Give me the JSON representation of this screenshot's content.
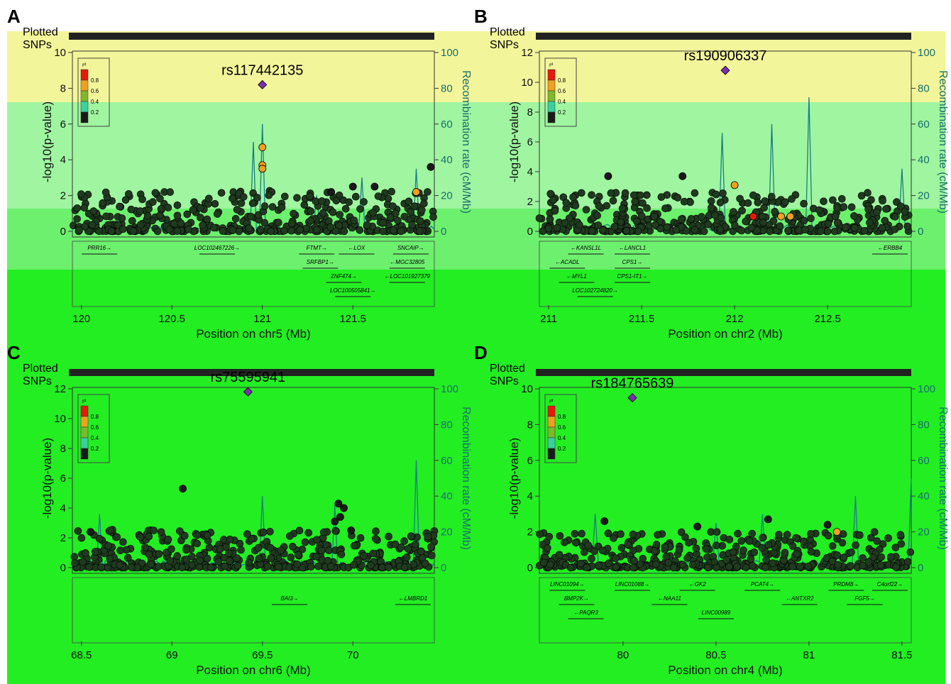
{
  "colors": {
    "r2_bins": [
      "#1a1a1a",
      "#3ad0a0",
      "#7fb82a",
      "#f0a020",
      "#e8180c"
    ],
    "recombination": "#1a7f80",
    "bg_top": "#f3f59a",
    "bg_mid": "#9ff5a0",
    "bg_low": "#22ee22"
  },
  "common": {
    "plotted_snps_label": "Plotted\nSNPs",
    "ylabel": "-log10(p-value)",
    "ylabel_rec": "Recombination rate (cM/Mb)",
    "legend_title": "r²",
    "legend_levels": [
      "0.8",
      "0.6",
      "0.4",
      "0.2"
    ]
  },
  "panels": [
    {
      "id": "A",
      "lead_snp": "rs117442135",
      "xlabel": "Position on chr5 (Mb)",
      "xlim": [
        119.95,
        121.95
      ],
      "xticks": [
        "120",
        "120.5",
        "121",
        "121.5"
      ],
      "ylim": [
        0,
        10
      ],
      "yticks": [
        "0",
        "2",
        "4",
        "6",
        "8",
        "10"
      ],
      "recticks": [
        "0",
        "20",
        "40",
        "60",
        "80",
        "100"
      ],
      "genes": [
        {
          "name": "PRR16→",
          "x": 120.1,
          "row": 0
        },
        {
          "name": "LOC102467226→",
          "x": 120.75,
          "row": 0
        },
        {
          "name": "FTMT→",
          "x": 121.3,
          "row": 0
        },
        {
          "name": "←LOX",
          "x": 121.52,
          "row": 0
        },
        {
          "name": "SNCAIP→",
          "x": 121.82,
          "row": 0
        },
        {
          "name": "SRFBP1→",
          "x": 121.32,
          "row": 1
        },
        {
          "name": "←MGC32805",
          "x": 121.8,
          "row": 1
        },
        {
          "name": "ZNF474→",
          "x": 121.45,
          "row": 2
        },
        {
          "name": "←LOC101927379",
          "x": 121.8,
          "row": 2
        },
        {
          "name": "LOC100505841→",
          "x": 121.5,
          "row": 3
        }
      ],
      "chart_data": {
        "type": "scatter",
        "lead": {
          "x": 121.0,
          "y": 8.2,
          "label": "rs117442135"
        },
        "points": [
          {
            "x": 121.0,
            "y": 4.7,
            "r2": 0.6
          },
          {
            "x": 121.0,
            "y": 3.7,
            "r2": 0.6
          },
          {
            "x": 121.0,
            "y": 3.5,
            "r2": 0.6
          },
          {
            "x": 121.93,
            "y": 3.6,
            "r2": 0.1
          },
          {
            "x": 121.5,
            "y": 2.5,
            "r2": 0.1
          },
          {
            "x": 121.62,
            "y": 2.5,
            "r2": 0.1
          },
          {
            "x": 121.85,
            "y": 2.2,
            "r2": 0.6
          },
          {
            "x": 121.38,
            "y": 2.2,
            "r2": 0.1
          }
        ],
        "background_max_y": 2.3,
        "rec_peaks": [
          [
            120.95,
            50
          ],
          [
            121.0,
            60
          ],
          [
            121.3,
            20
          ],
          [
            121.55,
            30
          ],
          [
            121.85,
            35
          ]
        ]
      }
    },
    {
      "id": "B",
      "lead_snp": "rs190906337",
      "xlabel": "Position on chr2 (Mb)",
      "xlim": [
        210.95,
        212.95
      ],
      "xticks": [
        "211",
        "211.5",
        "212",
        "212.5"
      ],
      "ylim": [
        0,
        12
      ],
      "yticks": [
        "0",
        "2",
        "4",
        "6",
        "8",
        "10",
        "12"
      ],
      "recticks": [
        "0",
        "20",
        "40",
        "60",
        "80",
        "100"
      ],
      "genes": [
        {
          "name": "←KANSL1L",
          "x": 211.2,
          "row": 0
        },
        {
          "name": "←LANCL1",
          "x": 211.45,
          "row": 0
        },
        {
          "name": "←ERBB4",
          "x": 212.9,
          "row": 0
        },
        {
          "name": "←ACADL",
          "x": 211.1,
          "row": 1
        },
        {
          "name": "CPS1→",
          "x": 211.45,
          "row": 1
        },
        {
          "name": "←MYL1",
          "x": 211.15,
          "row": 2
        },
        {
          "name": "CPS1-IT1→",
          "x": 211.45,
          "row": 2
        },
        {
          "name": "LOC102724820→",
          "x": 211.25,
          "row": 3
        }
      ],
      "chart_data": {
        "type": "scatter",
        "lead": {
          "x": 211.95,
          "y": 10.8,
          "label": "rs190906337"
        },
        "points": [
          {
            "x": 211.72,
            "y": 3.7,
            "r2": 0.1
          },
          {
            "x": 211.32,
            "y": 3.7,
            "r2": 0.1
          },
          {
            "x": 212.0,
            "y": 3.1,
            "r2": 0.6
          },
          {
            "x": 212.1,
            "y": 1.0,
            "r2": 0.95
          },
          {
            "x": 212.25,
            "y": 1.0,
            "r2": 0.6
          },
          {
            "x": 212.3,
            "y": 1.0,
            "r2": 0.6
          }
        ],
        "background_max_y": 2.6,
        "rec_peaks": [
          [
            211.93,
            55
          ],
          [
            212.2,
            60
          ],
          [
            212.4,
            75
          ],
          [
            212.9,
            35
          ]
        ]
      }
    },
    {
      "id": "C",
      "lead_snp": "rs75595941",
      "xlabel": "Position on chr6 (Mb)",
      "xlim": [
        68.45,
        70.45
      ],
      "xticks": [
        "68.5",
        "69",
        "69.5",
        "70"
      ],
      "ylim": [
        0,
        12
      ],
      "yticks": [
        "0",
        "2",
        "4",
        "6",
        "8",
        "10",
        "12"
      ],
      "recticks": [
        "0",
        "20",
        "40",
        "60",
        "80",
        "100"
      ],
      "genes": [
        {
          "name": "BAI3→",
          "x": 69.65,
          "row": 1
        },
        {
          "name": "←LMBRD1",
          "x": 70.4,
          "row": 1
        }
      ],
      "chart_data": {
        "type": "scatter",
        "lead": {
          "x": 69.42,
          "y": 11.8,
          "label": "rs75595941"
        },
        "points": [
          {
            "x": 69.06,
            "y": 5.3,
            "r2": 0.1
          },
          {
            "x": 69.92,
            "y": 4.3,
            "r2": 0.1
          },
          {
            "x": 69.95,
            "y": 4.0,
            "r2": 0.1
          },
          {
            "x": 69.93,
            "y": 3.4,
            "r2": 0.1
          },
          {
            "x": 69.9,
            "y": 3.1,
            "r2": 0.1
          },
          {
            "x": 69.99,
            "y": 2.5,
            "r2": 0.1
          },
          {
            "x": 68.55,
            "y": 2.4,
            "r2": 0.1
          }
        ],
        "background_max_y": 2.6,
        "rec_peaks": [
          [
            68.6,
            30
          ],
          [
            69.5,
            40
          ],
          [
            69.9,
            35
          ],
          [
            70.35,
            60
          ]
        ]
      }
    },
    {
      "id": "D",
      "lead_snp": "rs184765639",
      "xlabel": "Position on chr4 (Mb)",
      "xlim": [
        79.55,
        81.55
      ],
      "xticks": [
        "80",
        "80.5",
        "81",
        "81.5"
      ],
      "ylim": [
        0,
        10
      ],
      "yticks": [
        "0",
        "2",
        "4",
        "6",
        "8",
        "10"
      ],
      "recticks": [
        "0",
        "20",
        "40",
        "60",
        "80",
        "100"
      ],
      "genes": [
        {
          "name": "LINC01094→",
          "x": 79.7,
          "row": 0
        },
        {
          "name": "LINC01088→",
          "x": 80.05,
          "row": 0
        },
        {
          "name": "←GK2",
          "x": 80.4,
          "row": 0
        },
        {
          "name": "PCAT4→",
          "x": 80.75,
          "row": 0
        },
        {
          "name": "PRDM8→",
          "x": 81.2,
          "row": 0
        },
        {
          "name": "C4orf22→",
          "x": 81.5,
          "row": 0
        },
        {
          "name": "BMP2K→",
          "x": 79.75,
          "row": 1
        },
        {
          "name": "←NAA11",
          "x": 80.25,
          "row": 1
        },
        {
          "name": "←ANTXR2",
          "x": 80.95,
          "row": 1
        },
        {
          "name": "FGF5→",
          "x": 81.3,
          "row": 1
        },
        {
          "name": "←PAQR3",
          "x": 79.8,
          "row": 2
        },
        {
          "name": "LINC00989",
          "x": 80.5,
          "row": 2
        }
      ],
      "chart_data": {
        "type": "scatter",
        "lead": {
          "x": 80.05,
          "y": 9.5,
          "label": "rs184765639"
        },
        "points": [
          {
            "x": 79.9,
            "y": 2.6,
            "r2": 0.1
          },
          {
            "x": 80.4,
            "y": 2.3,
            "r2": 0.1
          },
          {
            "x": 80.78,
            "y": 2.7,
            "r2": 0.1
          },
          {
            "x": 81.1,
            "y": 2.4,
            "r2": 0.1
          },
          {
            "x": 81.15,
            "y": 2.0,
            "r2": 0.6
          }
        ],
        "background_max_y": 2.0,
        "rec_peaks": [
          [
            79.85,
            30
          ],
          [
            80.5,
            25
          ],
          [
            80.75,
            30
          ],
          [
            81.25,
            40
          ],
          [
            81.55,
            50
          ]
        ]
      }
    }
  ]
}
